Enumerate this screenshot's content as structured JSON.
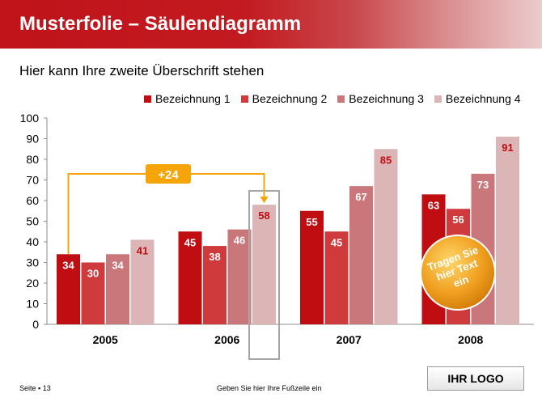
{
  "header": {
    "title": "Musterfolie – Säulendiagramm"
  },
  "subtitle": "Hier kann Ihre zweite Überschrift stehen",
  "footer": {
    "page": "Seite ▪ 13",
    "text": "Geben Sie hier Ihre Fußzeile ein"
  },
  "logo": "IHR LOGO",
  "callout": {
    "label": "+24",
    "color": "#f5a50a"
  },
  "badge": {
    "line1": "Tragen Sie",
    "line2": "hier Text",
    "line3": "ein",
    "color": "#f0a020"
  },
  "chart_data": {
    "type": "bar",
    "categories": [
      "2005",
      "2006",
      "2007",
      "2008"
    ],
    "series": [
      {
        "name": "Bezeichnung 1",
        "color": "#c00d12",
        "values": [
          34,
          45,
          55,
          63
        ]
      },
      {
        "name": "Bezeichnung 2",
        "color": "#cf3b3d",
        "values": [
          30,
          38,
          45,
          56
        ]
      },
      {
        "name": "Bezeichnung 3",
        "color": "#c9777a",
        "values": [
          34,
          46,
          67,
          73
        ]
      },
      {
        "name": "Bezeichnung 4",
        "color": "#dcb5b6",
        "values": [
          41,
          58,
          85,
          91
        ]
      }
    ],
    "ylim": [
      0,
      100
    ],
    "yticks": [
      0,
      10,
      20,
      30,
      40,
      50,
      60,
      70,
      80,
      90,
      100
    ],
    "legend_position": "top-right",
    "highlighted": {
      "category": "2006",
      "series": "Bezeichnung 4"
    }
  }
}
